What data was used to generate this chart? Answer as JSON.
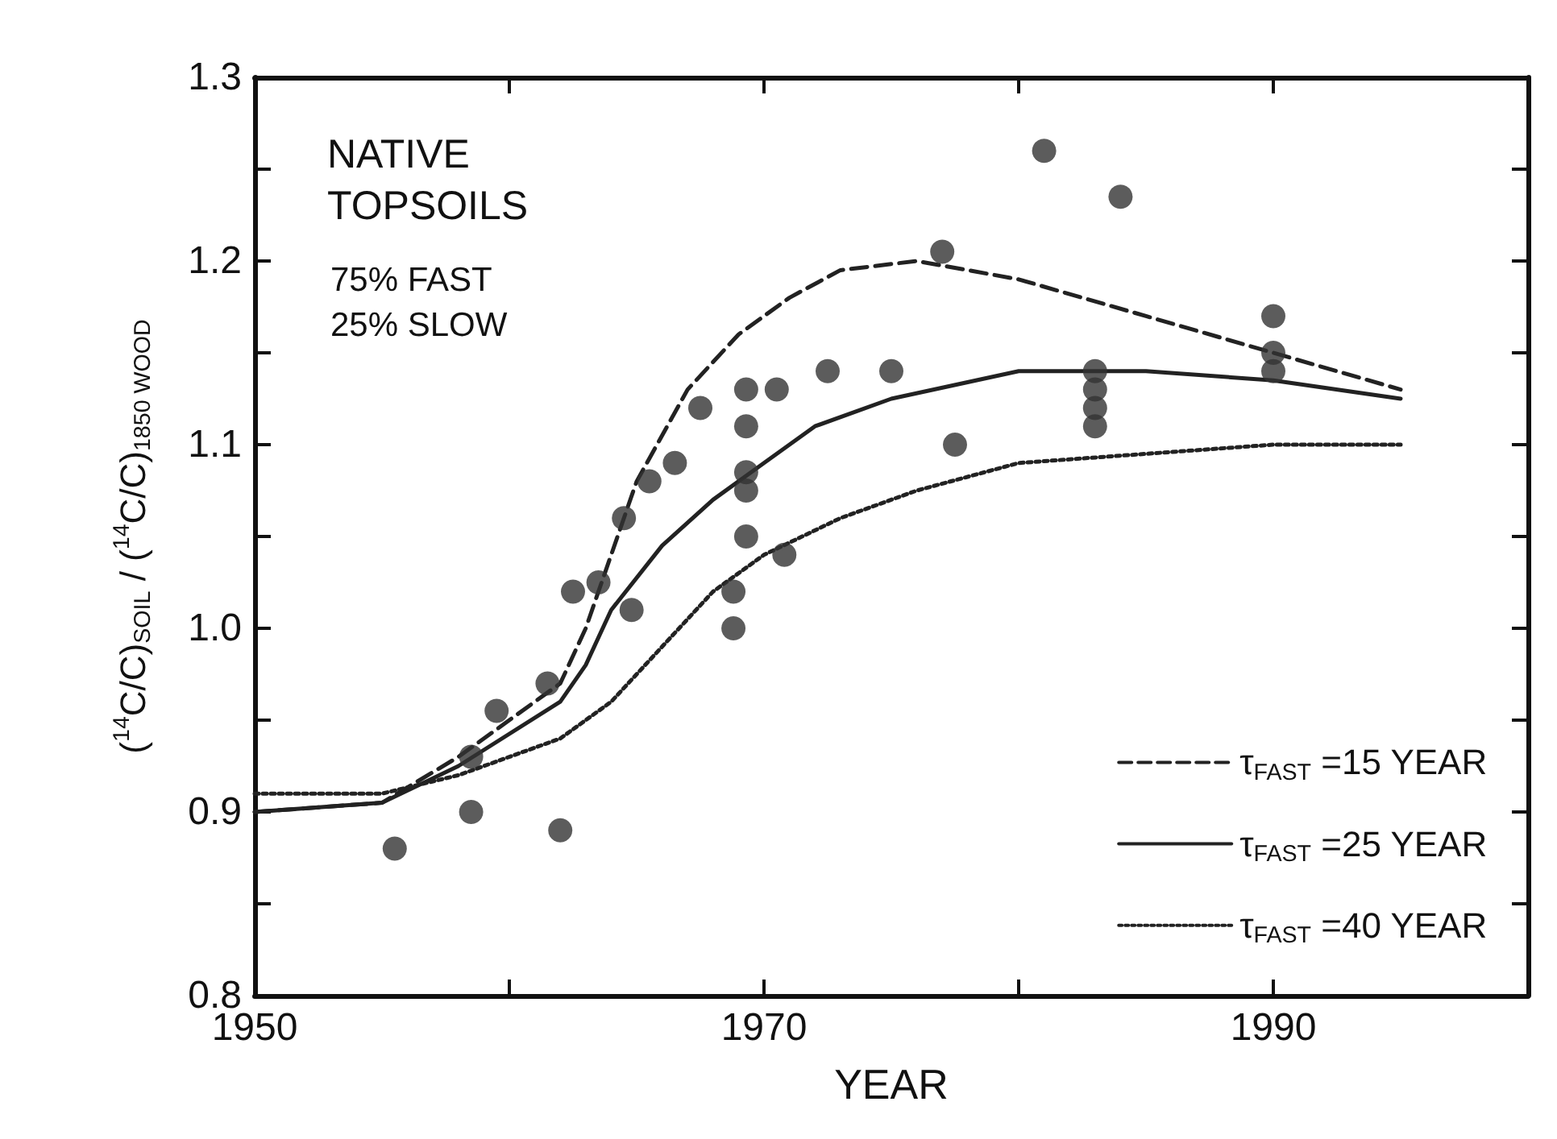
{
  "chart_data": {
    "type": "line",
    "xlabel": "YEAR",
    "ylabel": "($^{14}$C/C)$_{SOIL}$ / ($^{14}$C/C)$_{1850 WOOD}$",
    "annotations": [
      "NATIVE\nTOPSOILS",
      "75% FAST\n25% SLOW"
    ],
    "xlim": [
      1950,
      2000
    ],
    "xticks": [
      1950,
      {
        "value": 1960,
        "label": null
      },
      1970,
      {
        "value": 1980,
        "label": null
      },
      1990,
      {
        "value": 2000,
        "label": null
      }
    ],
    "ylim": [
      0.8,
      1.3
    ],
    "yticks": [
      0.8,
      {
        "value": 0.85,
        "label": null
      },
      0.9,
      {
        "value": 0.95,
        "label": null
      },
      {
        "value": 1.0,
        "label": "1.0"
      },
      {
        "value": 1.05,
        "label": null
      },
      1.1,
      {
        "value": 1.15,
        "label": null
      },
      1.2,
      {
        "value": 1.25,
        "label": null
      },
      1.3
    ],
    "grid": false,
    "legend": "bottom right",
    "series": [
      {
        "name": "τ$_{FAST}$ =15 YEAR",
        "color": "#222222",
        "line_style": "dashed",
        "marker": "none",
        "x": [
          1950,
          1955,
          1958,
          1960,
          1962,
          1963,
          1964,
          1965,
          1967,
          1969,
          1971,
          1973,
          1976,
          1980,
          1985,
          1990,
          1995
        ],
        "values": [
          0.9,
          0.905,
          0.93,
          0.95,
          0.97,
          1.0,
          1.04,
          1.08,
          1.13,
          1.16,
          1.18,
          1.195,
          1.2,
          1.19,
          1.17,
          1.15,
          1.13
        ]
      },
      {
        "name": "τ$_{FAST}$ =25 YEAR",
        "color": "#222222",
        "line_style": "solid",
        "marker": "none",
        "x": [
          1950,
          1955,
          1958,
          1962,
          1963,
          1964,
          1966,
          1968,
          1970,
          1972,
          1975,
          1980,
          1985,
          1990,
          1995
        ],
        "values": [
          0.9,
          0.905,
          0.925,
          0.96,
          0.98,
          1.01,
          1.045,
          1.07,
          1.09,
          1.11,
          1.125,
          1.14,
          1.14,
          1.135,
          1.125
        ]
      },
      {
        "name": "τ$_{FAST}$ =40 YEAR",
        "color": "#222222",
        "line_style": "dotted",
        "marker": "none",
        "x": [
          1950,
          1955,
          1958,
          1962,
          1964,
          1966,
          1968,
          1970,
          1973,
          1976,
          1980,
          1985,
          1990,
          1995
        ],
        "values": [
          0.91,
          0.91,
          0.92,
          0.94,
          0.96,
          0.99,
          1.02,
          1.04,
          1.06,
          1.075,
          1.09,
          1.095,
          1.1,
          1.1
        ]
      },
      {
        "type": "scatter",
        "color": "#333333",
        "marker": "circle",
        "x": [
          1955.5,
          1958.5,
          1958.5,
          1959.5,
          1961.5,
          1962,
          1962.5,
          1963.5,
          1964.5,
          1964.8,
          1965.5,
          1966.5,
          1967.5,
          1968.8,
          1968.8,
          1969.3,
          1969.3,
          1969.3,
          1969.3,
          1969.3,
          1970.5,
          1970.8,
          1972.5,
          1975,
          1977,
          1977.5,
          1981,
          1984,
          1983,
          1983,
          1983,
          1983,
          1990,
          1990,
          1990
        ],
        "values": [
          0.88,
          0.93,
          0.9,
          0.955,
          0.97,
          0.89,
          1.02,
          1.025,
          1.06,
          1.01,
          1.08,
          1.09,
          1.12,
          1.02,
          1.0,
          1.13,
          1.11,
          1.085,
          1.075,
          1.05,
          1.13,
          1.04,
          1.14,
          1.14,
          1.205,
          1.1,
          1.26,
          1.235,
          1.14,
          1.13,
          1.12,
          1.11,
          1.17,
          1.15,
          1.14
        ]
      }
    ]
  }
}
